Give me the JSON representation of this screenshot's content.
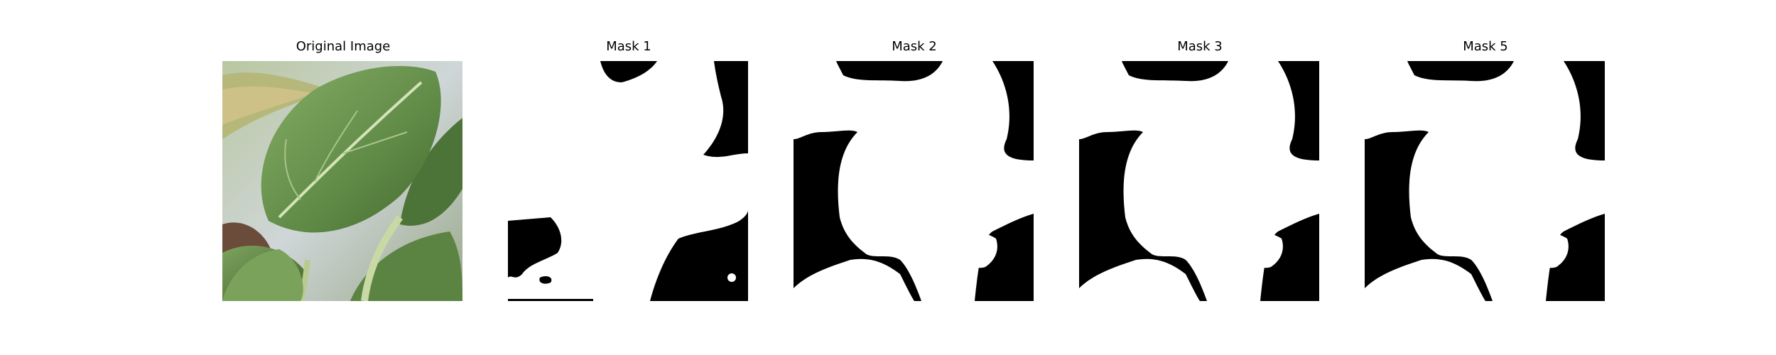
{
  "panels": [
    {
      "title": "Original Image",
      "kind": "photo"
    },
    {
      "title": "Mask 1",
      "kind": "mask"
    },
    {
      "title": "Mask 2",
      "kind": "mask"
    },
    {
      "title": "Mask 3",
      "kind": "mask"
    },
    {
      "title": "Mask 5",
      "kind": "mask"
    }
  ],
  "colors": {
    "background": "#ffffff",
    "mask_foreground": "#ffffff",
    "mask_background": "#000000",
    "leaf_main": "#6f9a55",
    "leaf_dark": "#4f7a3a",
    "leaf_light": "#a9c58a",
    "sky": "#c9d2d6",
    "stem": "#c8d9a6"
  }
}
